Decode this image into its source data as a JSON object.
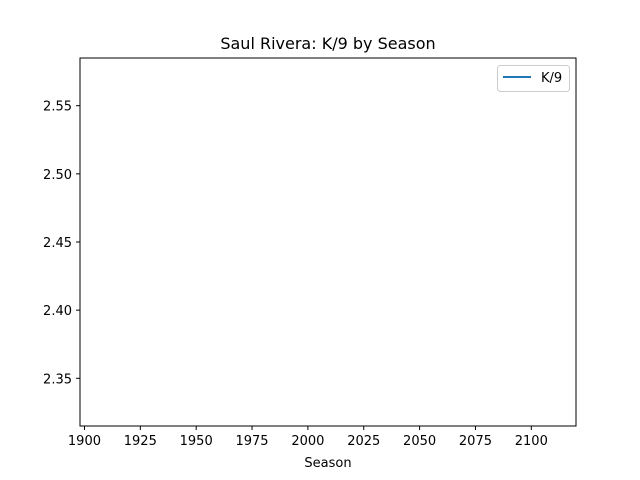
{
  "chart_data": {
    "type": "line",
    "title": "Saul Rivera: K/9 by Season",
    "xlabel": "Season",
    "ylabel": "",
    "xlim": [
      1898,
      2120
    ],
    "ylim": [
      2.315,
      2.585
    ],
    "x_ticks": [
      1900,
      1925,
      1950,
      1975,
      2000,
      2025,
      2050,
      2075,
      2100
    ],
    "y_ticks": [
      2.35,
      2.4,
      2.45,
      2.5,
      2.55
    ],
    "y_tick_labels": [
      "2.35",
      "2.40",
      "2.45",
      "2.50",
      "2.55"
    ],
    "grid": false,
    "legend_position": "top-right",
    "series": [
      {
        "name": "K/9",
        "color": "#1f77b4",
        "x": [],
        "y": []
      }
    ]
  }
}
